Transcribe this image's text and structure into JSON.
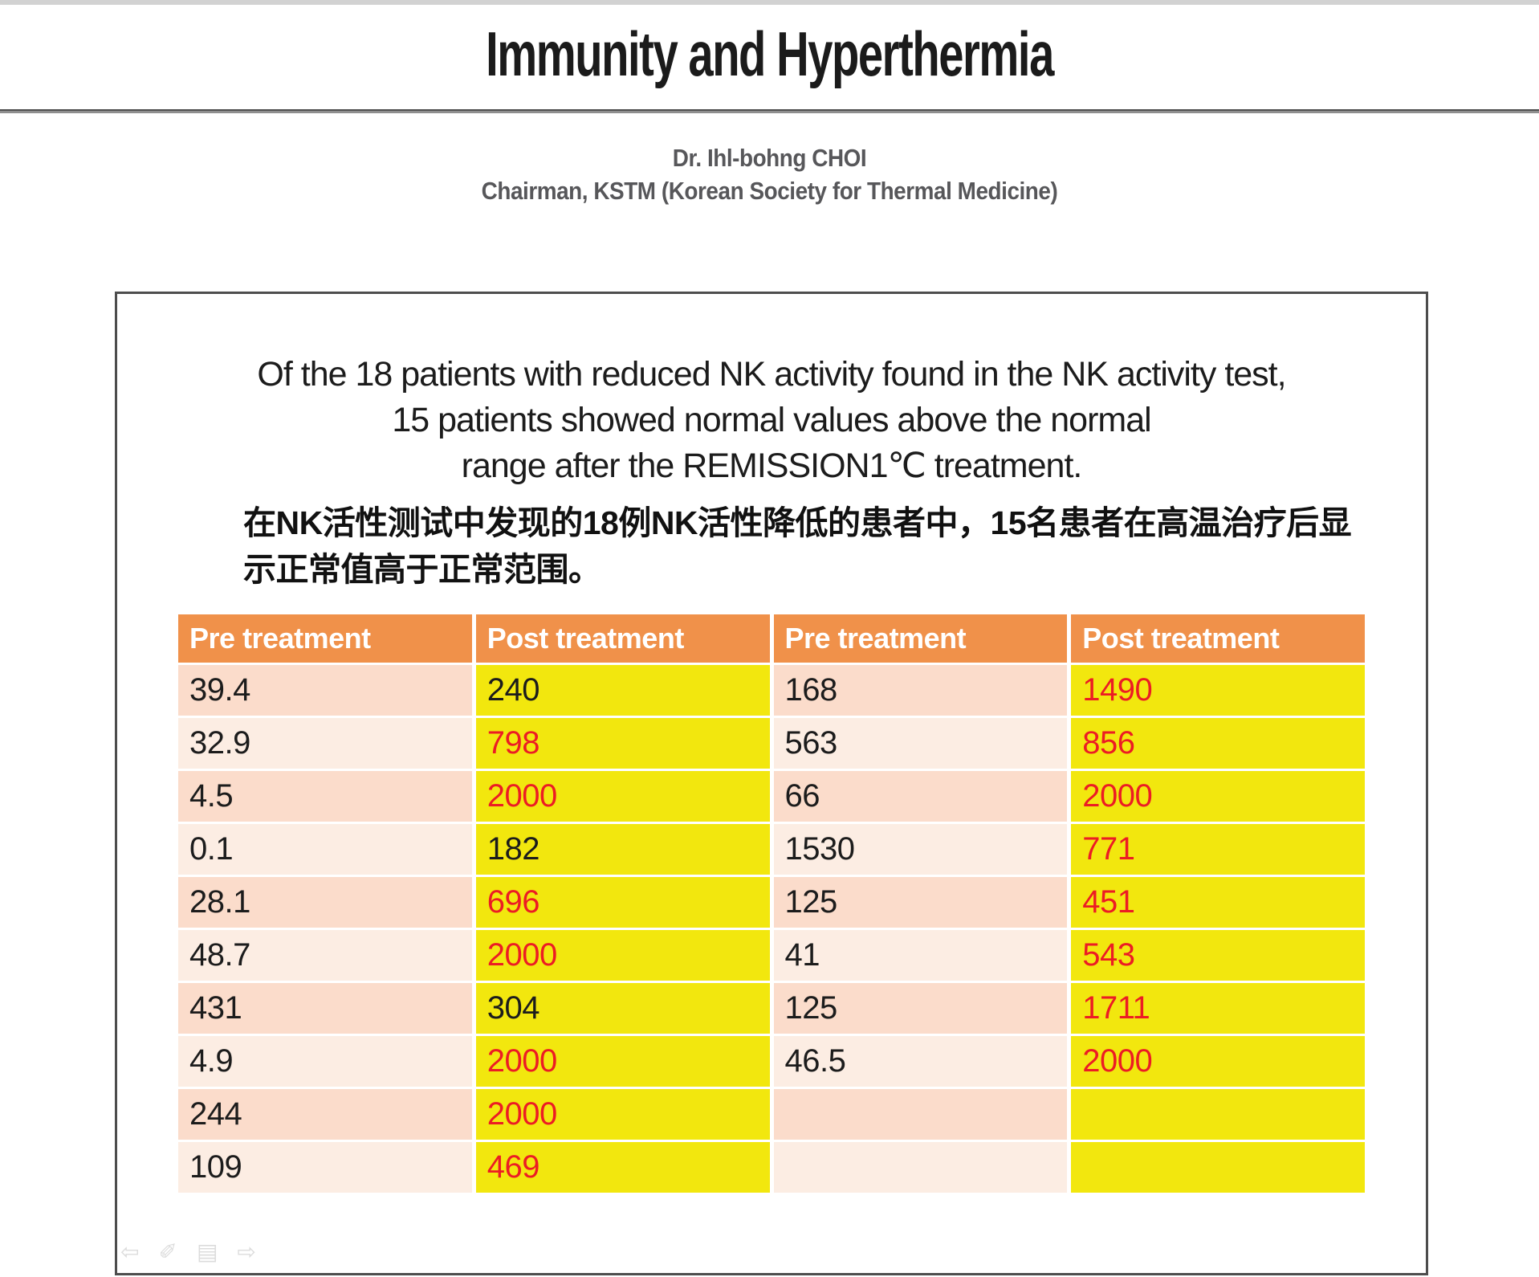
{
  "page": {
    "title": "Immunity and Hyperthermia",
    "author_line1": "Dr. Ihl-bohng  CHOI",
    "author_line2": "Chairman, KSTM (Korean Society for Thermal Medicine)"
  },
  "summary": {
    "en_lines": [
      "Of the 18 patients with reduced NK activity found in the NK activity test,",
      "15 patients showed normal values above the normal",
      "range after the REMISSION1℃ treatment."
    ],
    "zh_lines": [
      "在NK活性测试中发现的18例NK活性降低的患者中，15名患者在高温治疗后显",
      "示正常值高于正常范围。"
    ]
  },
  "table": {
    "headers": [
      "Pre treatment",
      "Post treatment",
      "Pre treatment",
      "Post treatment"
    ],
    "rows": [
      [
        {
          "v": "39.4"
        },
        {
          "v": "240"
        },
        {
          "v": "168"
        },
        {
          "v": "1490",
          "red": true
        }
      ],
      [
        {
          "v": "32.9"
        },
        {
          "v": "798",
          "red": true
        },
        {
          "v": "563"
        },
        {
          "v": "856",
          "red": true
        }
      ],
      [
        {
          "v": "4.5"
        },
        {
          "v": "2000",
          "red": true
        },
        {
          "v": "66"
        },
        {
          "v": "2000",
          "red": true
        }
      ],
      [
        {
          "v": "0.1"
        },
        {
          "v": "182"
        },
        {
          "v": "1530"
        },
        {
          "v": "771",
          "red": true
        }
      ],
      [
        {
          "v": "28.1"
        },
        {
          "v": "696",
          "red": true
        },
        {
          "v": "125"
        },
        {
          "v": "451",
          "red": true
        }
      ],
      [
        {
          "v": "48.7"
        },
        {
          "v": "2000",
          "red": true
        },
        {
          "v": "41"
        },
        {
          "v": "543",
          "red": true
        }
      ],
      [
        {
          "v": "431"
        },
        {
          "v": "304"
        },
        {
          "v": "125"
        },
        {
          "v": "1711",
          "red": true
        }
      ],
      [
        {
          "v": "4.9"
        },
        {
          "v": "2000",
          "red": true
        },
        {
          "v": "46.5"
        },
        {
          "v": "2000",
          "red": true
        }
      ],
      [
        {
          "v": "244"
        },
        {
          "v": "2000",
          "red": true
        },
        {
          "v": ""
        },
        {
          "v": ""
        }
      ],
      [
        {
          "v": "109"
        },
        {
          "v": "469",
          "red": true
        },
        {
          "v": ""
        },
        {
          "v": ""
        }
      ]
    ]
  },
  "colors": {
    "top_bar": "#d2d2d2",
    "header_bg": "#f0914a",
    "row_pink_dark": "#fbdccb",
    "row_pink_light": "#fcede3",
    "cell_yellow": "#f2e70e",
    "highlight_red": "#ec1c24",
    "subtitle_gray": "#57575a"
  },
  "nav": {
    "icons": [
      {
        "name": "back-arrow-icon",
        "glyph": "⇦"
      },
      {
        "name": "pen-icon",
        "glyph": "✐"
      },
      {
        "name": "menu-icon",
        "glyph": "▤"
      },
      {
        "name": "forward-arrow-icon",
        "glyph": "⇨"
      }
    ]
  }
}
